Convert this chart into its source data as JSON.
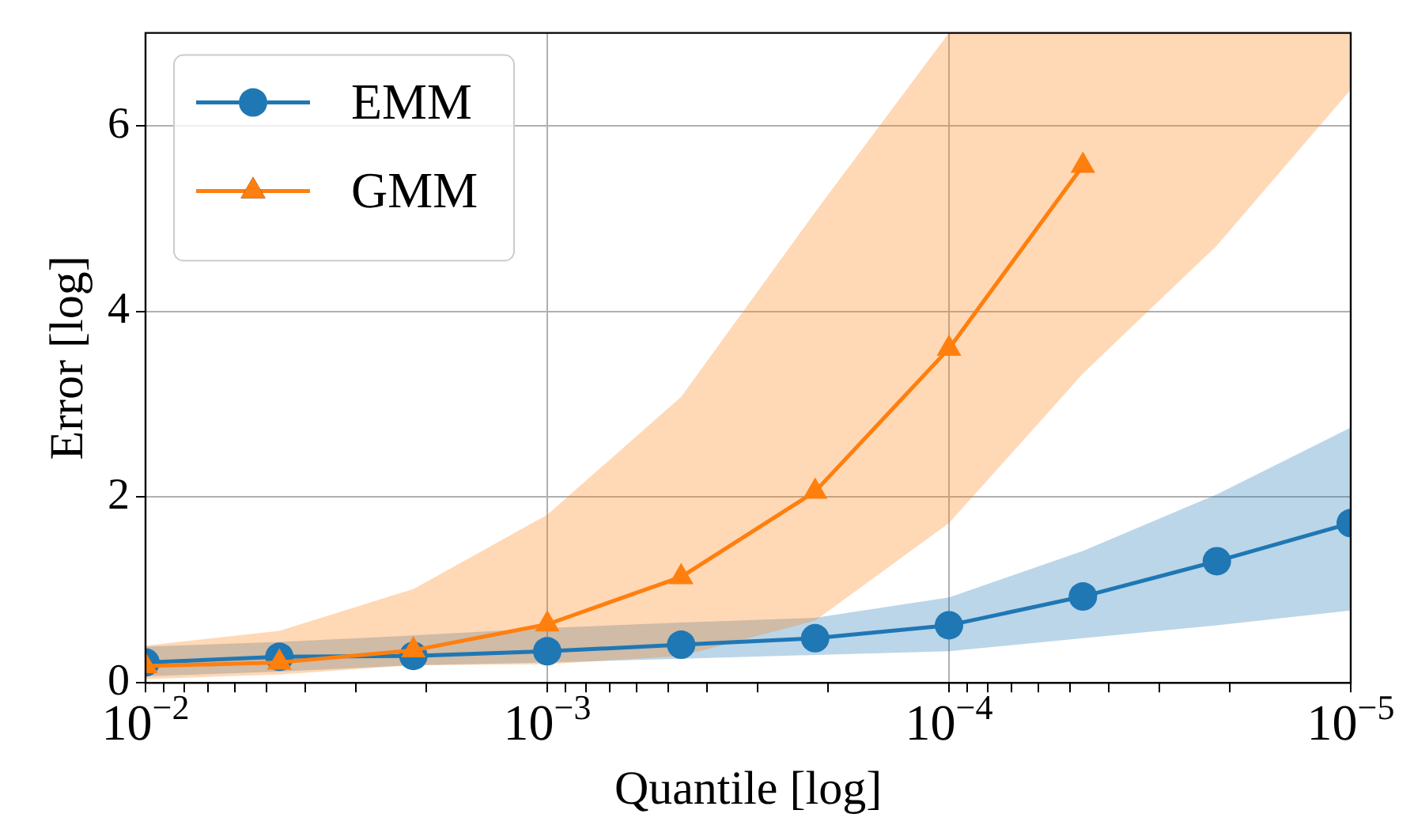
{
  "chart_data": {
    "type": "line",
    "xlabel": "Quantile [log]",
    "ylabel": "Error [log]",
    "log": "x",
    "grid": true,
    "legend": "top left",
    "x": [
      0.01,
      0.004642,
      0.002154,
      0.001,
      0.0004642,
      0.0002154,
      0.0001,
      4.642e-05,
      2.154e-05,
      1e-05
    ],
    "xlim": [
      0.01,
      1e-05
    ],
    "xticks": [
      {
        "value": 0.01,
        "label": "10$^{−2}$"
      },
      {
        "value": 0.009,
        "label": null
      },
      {
        "value": 0.008,
        "label": null
      },
      {
        "value": 0.007,
        "label": null
      },
      {
        "value": 0.006,
        "label": null
      },
      {
        "value": 0.005,
        "label": null
      },
      {
        "value": 0.004,
        "label": null
      },
      {
        "value": 0.003,
        "label": null
      },
      {
        "value": 0.002,
        "label": null
      },
      {
        "value": 0.001,
        "label": "10$^{−3}$"
      },
      {
        "value": 0.0009,
        "label": null
      },
      {
        "value": 0.0008,
        "label": null
      },
      {
        "value": 0.0007,
        "label": null
      },
      {
        "value": 0.0006,
        "label": null
      },
      {
        "value": 0.0005,
        "label": null
      },
      {
        "value": 0.0004,
        "label": null
      },
      {
        "value": 0.0003,
        "label": null
      },
      {
        "value": 0.0002,
        "label": null
      },
      {
        "value": 0.0001,
        "label": "10$^{−4}$"
      },
      {
        "value": 9e-05,
        "label": null
      },
      {
        "value": 8e-05,
        "label": null
      },
      {
        "value": 7e-05,
        "label": null
      },
      {
        "value": 6e-05,
        "label": null
      },
      {
        "value": 5e-05,
        "label": null
      },
      {
        "value": 4e-05,
        "label": null
      },
      {
        "value": 3e-05,
        "label": null
      },
      {
        "value": 2e-05,
        "label": null
      },
      {
        "value": 1e-05,
        "label": "10$^{−5}$"
      }
    ],
    "ylim": [
      0,
      7
    ],
    "yticks": [
      0,
      2,
      4,
      6
    ],
    "series": [
      {
        "name": "EMM",
        "color": "#1f77b4",
        "marker": "circle",
        "values": [
          0.22,
          0.28,
          0.29,
          0.34,
          0.41,
          0.48,
          0.62,
          0.93,
          1.31,
          1.72
        ],
        "lower": [
          0.07,
          0.12,
          0.19,
          0.22,
          0.26,
          0.3,
          0.34,
          0.48,
          0.62,
          0.78
        ],
        "upper": [
          0.39,
          0.44,
          0.51,
          0.59,
          0.65,
          0.7,
          0.92,
          1.42,
          2.03,
          2.75
        ]
      },
      {
        "name": "GMM",
        "color": "#ff7f0e",
        "marker": "triangle",
        "values": [
          0.18,
          0.22,
          0.35,
          0.63,
          1.14,
          2.06,
          3.6,
          5.57,
          null,
          null
        ],
        "lower": [
          0.04,
          0.09,
          0.19,
          0.2,
          0.29,
          0.67,
          1.72,
          3.33,
          4.71,
          6.39
        ],
        "upper": [
          0.4,
          0.56,
          1.01,
          1.81,
          3.08,
          5.07,
          7,
          7,
          7,
          7
        ]
      }
    ]
  }
}
